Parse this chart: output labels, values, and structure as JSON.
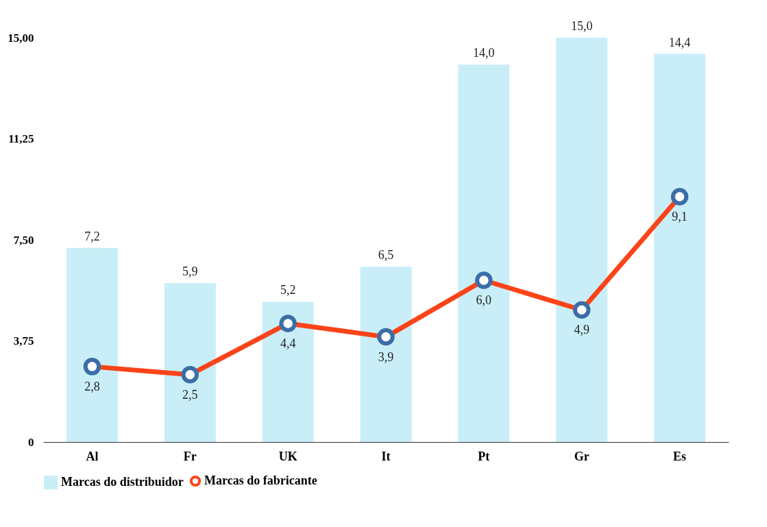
{
  "chart_data": {
    "type": "bar",
    "categories": [
      "Al",
      "Fr",
      "UK",
      "It",
      "Pt",
      "Gr",
      "Es"
    ],
    "series": [
      {
        "name": "Marcas do distribuidor",
        "color": "#c9eef8",
        "values": [
          7.2,
          5.9,
          5.2,
          6.5,
          14.0,
          15.0,
          14.4
        ],
        "value_labels": [
          "7,2",
          "5,9",
          "5,2",
          "6,5",
          "14,0",
          "15,0",
          "14,4"
        ]
      },
      {
        "name": "Marcas do fabricante",
        "type": "line",
        "color": "#fb4419",
        "values": [
          2.8,
          2.5,
          4.4,
          3.9,
          6.0,
          4.9,
          9.1
        ],
        "value_labels": [
          "2,8",
          "2,5",
          "4,4",
          "3,9",
          "6,0",
          "4,9",
          "9,1"
        ]
      }
    ],
    "ylim": [
      0,
      15
    ],
    "yticks": [
      0,
      {
        "value": 3.75,
        "label": "3,75"
      },
      {
        "value": 7.5,
        "label": "7,50"
      },
      {
        "value": 11.25,
        "label": "11,25"
      },
      {
        "value": 15,
        "label": "15,00"
      }
    ],
    "grid": false,
    "legend": "bottom",
    "marker": "circle",
    "line_style": "solid"
  }
}
